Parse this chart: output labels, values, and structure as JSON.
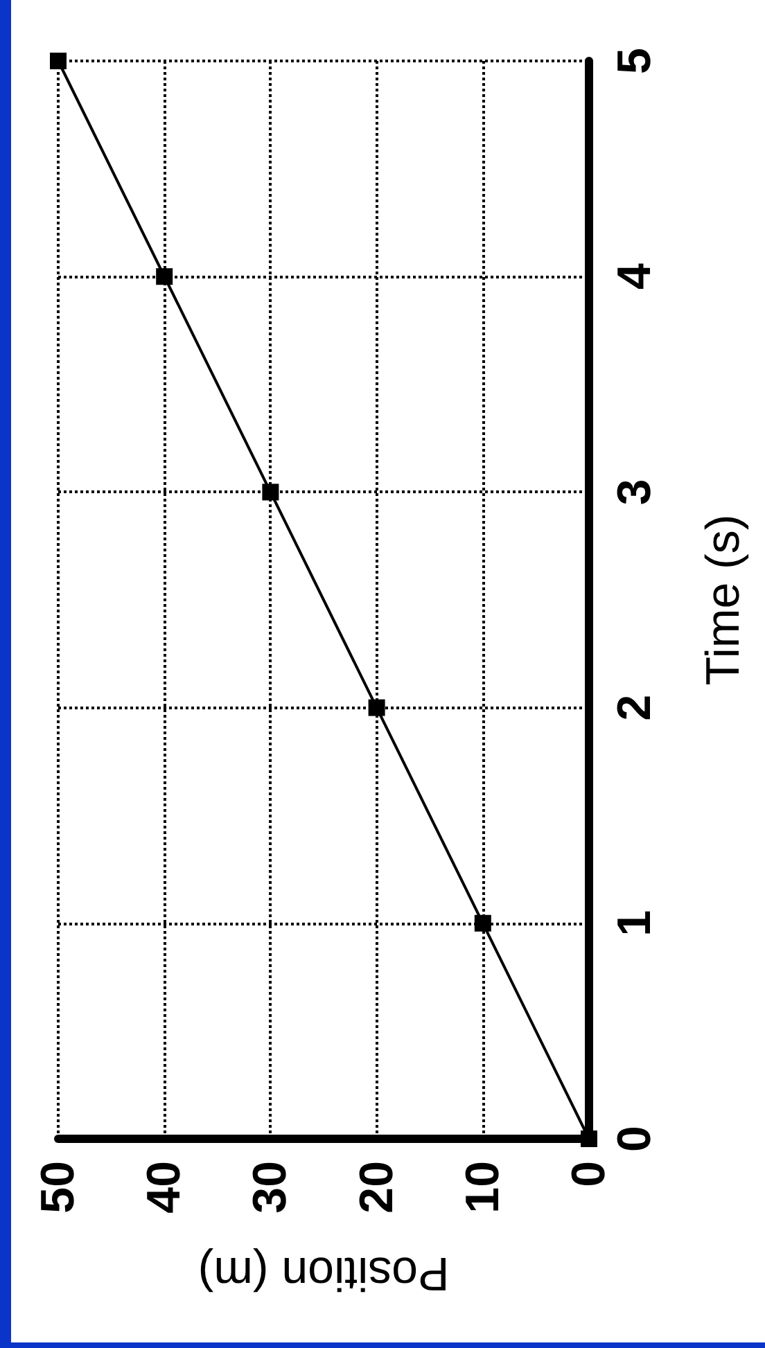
{
  "chart_data": {
    "type": "line",
    "xlabel": "Position (m)",
    "ylabel": "Time (s)",
    "x": [
      0,
      10,
      20,
      30,
      40,
      50
    ],
    "series": [
      {
        "color": "#000000",
        "values": [
          0,
          1,
          2,
          3,
          4,
          5
        ]
      }
    ],
    "xlim": [
      50,
      0
    ],
    "xticks": [
      0,
      10,
      20,
      30,
      40,
      50
    ],
    "ylim": [
      0,
      5
    ],
    "yticks": [
      0,
      1,
      2,
      3,
      4,
      5
    ],
    "grid": true,
    "marker": "square",
    "line_style": "solid"
  }
}
